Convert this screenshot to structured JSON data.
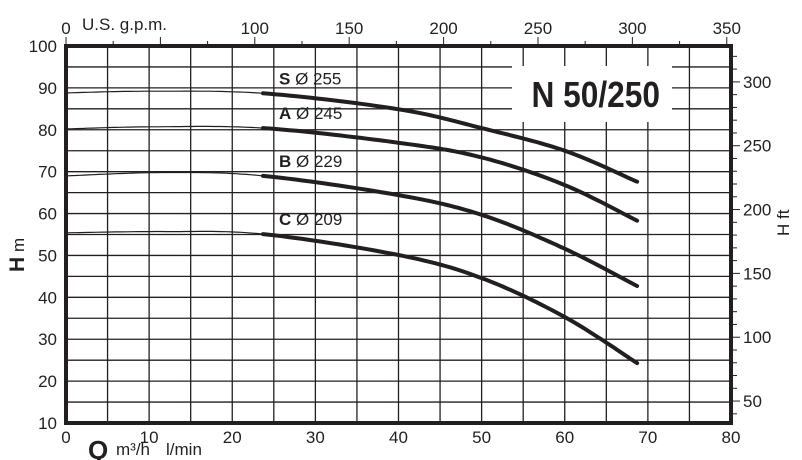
{
  "chart_data": {
    "type": "line",
    "title": "N 50/250",
    "xlabel": "Q",
    "xunit": "m³/h",
    "xunit2": "l/min",
    "ylabel": "H",
    "yunit": "m",
    "y2label": "H ft",
    "x2label": "U.S. g.p.m.",
    "xlim": [
      0,
      80
    ],
    "ylim": [
      10,
      100
    ],
    "x2lim": [
      0,
      352
    ],
    "y2lim": [
      33,
      328
    ],
    "grid": true,
    "x_ticks": [
      0,
      10,
      20,
      30,
      40,
      50,
      60,
      70,
      80
    ],
    "y_ticks": [
      10,
      20,
      30,
      40,
      50,
      60,
      70,
      80,
      90,
      100
    ],
    "x2_ticks": [
      0,
      100,
      150,
      200,
      250,
      300,
      350
    ],
    "y2_ticks": [
      50,
      100,
      150,
      200,
      250,
      300
    ],
    "series": [
      {
        "name": "S",
        "diameter": "Ø 255",
        "points": [
          [
            0,
            88.8
          ],
          [
            10,
            89.2
          ],
          [
            23.7,
            88.7
          ],
          [
            40,
            84.9
          ],
          [
            50,
            80.4
          ],
          [
            60,
            75.0
          ],
          [
            68.7,
            67.6
          ]
        ]
      },
      {
        "name": "A",
        "diameter": "Ø 245",
        "points": [
          [
            0,
            80.2
          ],
          [
            10,
            80.7
          ],
          [
            23.7,
            80.4
          ],
          [
            40,
            76.9
          ],
          [
            50,
            73.4
          ],
          [
            60,
            66.8
          ],
          [
            68.7,
            58.3
          ]
        ]
      },
      {
        "name": "B",
        "diameter": "Ø 229",
        "points": [
          [
            0,
            69.0
          ],
          [
            12,
            69.8
          ],
          [
            23.7,
            69.0
          ],
          [
            40,
            64.4
          ],
          [
            50,
            59.7
          ],
          [
            60,
            51.6
          ],
          [
            68.7,
            42.7
          ]
        ]
      },
      {
        "name": "C",
        "diameter": "Ø 209",
        "points": [
          [
            0,
            55.4
          ],
          [
            12,
            55.7
          ],
          [
            23.7,
            55.1
          ],
          [
            40,
            50.1
          ],
          [
            50,
            44.6
          ],
          [
            60,
            35.3
          ],
          [
            68.7,
            24.3
          ]
        ]
      }
    ],
    "operating_range_start": 23.7,
    "colors": {
      "curve": "#231f20",
      "grid": "#231f20"
    }
  }
}
